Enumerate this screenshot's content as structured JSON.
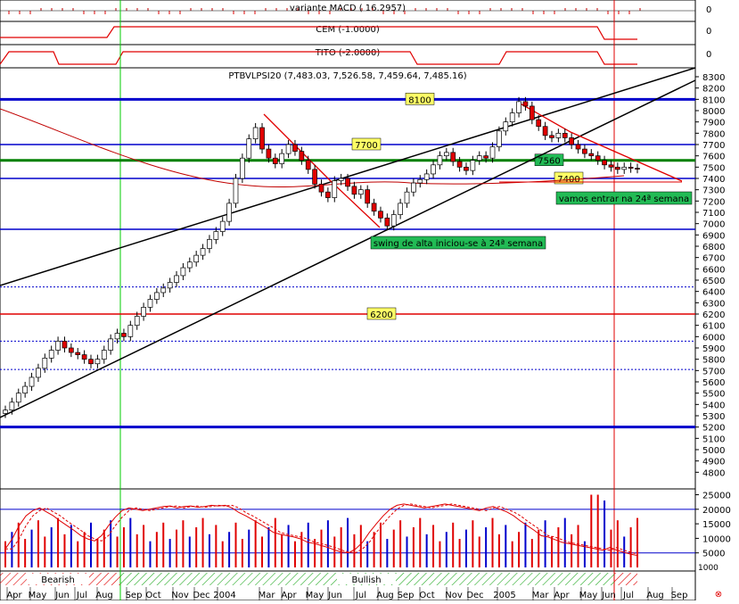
{
  "panels": {
    "macd": {
      "label": "variante MACD ( 16.2957)",
      "scale_labels": [
        "0"
      ]
    },
    "cem": {
      "label": "CEM (-1.0000)",
      "scale_labels": [
        "0"
      ]
    },
    "tito": {
      "label": "TITO (-2.0000)",
      "scale_labels": [
        "0"
      ]
    }
  },
  "chart_data": {
    "type": "candlestick",
    "title": "PTBVLPSI20 (7,483.03, 7,526.58, 7,459.64, 7,485.16)",
    "ylim": [
      4700,
      8300
    ],
    "y_ticks": [
      8300,
      8200,
      8100,
      8000,
      7900,
      7800,
      7700,
      7600,
      7500,
      7400,
      7300,
      7200,
      7100,
      7000,
      6900,
      6800,
      6700,
      6600,
      6500,
      6400,
      6300,
      6200,
      6100,
      6000,
      5900,
      5800,
      5700,
      5600,
      5500,
      5400,
      5300,
      5200,
      5100,
      5000,
      4900,
      4800
    ],
    "x_labels": [
      "Apr",
      "May",
      "Jun",
      "Jul",
      "Aug",
      "Sep",
      "Oct",
      "Nov",
      "Dec",
      "2004",
      "Mar",
      "Apr",
      "May",
      "Jun",
      "Jul",
      "Aug",
      "Sep",
      "Oct",
      "Nov",
      "Dec",
      "2005",
      "Mar",
      "Apr",
      "May",
      "Jun",
      "Jul",
      "Aug",
      "Sep"
    ],
    "horizontal_levels": [
      {
        "value": 8100,
        "label": "8100",
        "color": "#0000cc"
      },
      {
        "value": 7700,
        "label": "7700",
        "color": "#0000cc"
      },
      {
        "value": 7560,
        "label": "7560",
        "color": "#008000"
      },
      {
        "value": 7400,
        "label": "7400",
        "color": "#0000cc"
      },
      {
        "value": 6950,
        "label": "",
        "color": "#0000cc"
      },
      {
        "value": 6200,
        "label": "6200",
        "color": "#e00000"
      },
      {
        "value": 5200,
        "label": "",
        "color": "#0000cc"
      }
    ],
    "annotations": [
      "vamos entrar na 24ª semana",
      "swing de alta iniciou-se à 24ª semana"
    ],
    "closes": [
      5350,
      5420,
      5500,
      5560,
      5640,
      5720,
      5810,
      5880,
      5960,
      5900,
      5860,
      5840,
      5800,
      5760,
      5800,
      5880,
      5980,
      6030,
      6000,
      6100,
      6180,
      6260,
      6330,
      6390,
      6430,
      6480,
      6540,
      6610,
      6660,
      6720,
      6780,
      6860,
      6930,
      7020,
      7180,
      7400,
      7580,
      7750,
      7850,
      7660,
      7580,
      7530,
      7620,
      7700,
      7640,
      7560,
      7480,
      7350,
      7280,
      7230,
      7380,
      7400,
      7330,
      7260,
      7300,
      7180,
      7110,
      7050,
      6980,
      7080,
      7180,
      7280,
      7360,
      7390,
      7440,
      7520,
      7600,
      7630,
      7550,
      7500,
      7470,
      7560,
      7600,
      7580,
      7680,
      7820,
      7900,
      7980,
      8080,
      8040,
      7920,
      7860,
      7780,
      7760,
      7800,
      7760,
      7700,
      7660,
      7620,
      7600,
      7560,
      7520,
      7500,
      7480,
      7500,
      7490,
      7485
    ],
    "stochastic": [
      20,
      35,
      55,
      70,
      78,
      82,
      76,
      70,
      62,
      55,
      48,
      40,
      35,
      32,
      40,
      55,
      68,
      78,
      82,
      80,
      78,
      80,
      82,
      84,
      85,
      82,
      84,
      85,
      83,
      84,
      86,
      85,
      86,
      82,
      75,
      70,
      64,
      58,
      52,
      45,
      42,
      40,
      38,
      35,
      30,
      28,
      25,
      22,
      18,
      15,
      14,
      20,
      30,
      45,
      58,
      70,
      80,
      86,
      88,
      86,
      84,
      82,
      84,
      86,
      88,
      86,
      84,
      82,
      80,
      78,
      82,
      84,
      80,
      76,
      70,
      62,
      55,
      48,
      40,
      38,
      34,
      30,
      28,
      26,
      24,
      22,
      20,
      18,
      22,
      18,
      15,
      12,
      10
    ],
    "volume_ylim": [
      0,
      27000
    ],
    "volume_ticks": [
      25000,
      20000,
      15000,
      10000,
      5000
    ],
    "volume_unit_label": "1000",
    "regime_labels": [
      "Bearish",
      "Bullish"
    ]
  }
}
